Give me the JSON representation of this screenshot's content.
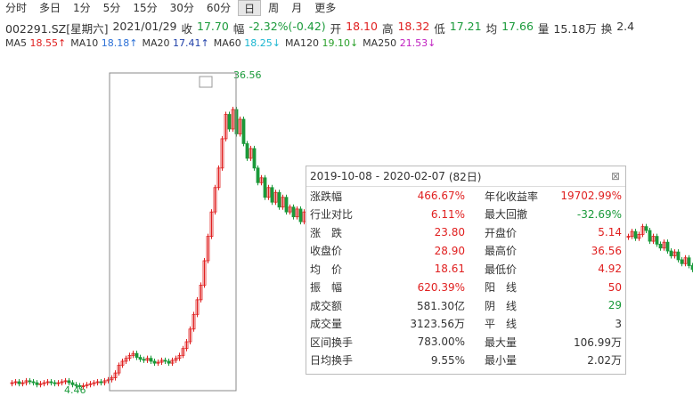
{
  "tabs": [
    "分时",
    "多日",
    "1分",
    "5分",
    "15分",
    "30分",
    "60分",
    "日",
    "周",
    "月",
    "更多"
  ],
  "active_tab": "日",
  "quote": {
    "code": "002291.SZ[星期六]",
    "date": "2021/01/29",
    "items": [
      {
        "label": "收",
        "value": "17.70",
        "color": "#1a9a3a"
      },
      {
        "label": "幅",
        "value": "-2.32%(-0.42)",
        "color": "#1a9a3a"
      },
      {
        "label": "开",
        "value": "18.10",
        "color": "#e02020"
      },
      {
        "label": "高",
        "value": "18.32",
        "color": "#e02020"
      },
      {
        "label": "低",
        "value": "17.21",
        "color": "#1a9a3a"
      },
      {
        "label": "均",
        "value": "17.66",
        "color": "#1a9a3a"
      },
      {
        "label": "量",
        "value": "15.18万",
        "color": "#333333"
      },
      {
        "label": "换",
        "value": "2.4",
        "color": "#333333"
      }
    ]
  },
  "ma": [
    {
      "name": "MA5",
      "value": "18.55↑",
      "color": "#e02020"
    },
    {
      "name": "MA10",
      "value": "18.18↑",
      "color": "#2a6fd6"
    },
    {
      "name": "MA20",
      "value": "17.41↑",
      "color": "#1f3fa8"
    },
    {
      "name": "MA60",
      "value": "18.25↓",
      "color": "#19b5d0"
    },
    {
      "name": "MA120",
      "value": "19.10↓",
      "color": "#2aa02a"
    },
    {
      "name": "MA250",
      "value": "21.53↓",
      "color": "#c020c0"
    }
  ],
  "chart_data": {
    "type": "candlestick",
    "up_color": "#e02020",
    "down_color": "#1a9a3a",
    "high_label": 36.56,
    "low_label": 4.46,
    "closes": [
      5.0,
      5.1,
      4.9,
      5.0,
      5.2,
      5.1,
      5.0,
      4.8,
      4.9,
      5.0,
      5.1,
      5.0,
      4.9,
      5.0,
      5.1,
      5.2,
      5.0,
      4.8,
      4.7,
      4.6,
      4.7,
      4.8,
      4.9,
      5.0,
      5.1,
      5.0,
      5.2,
      5.3,
      5.5,
      6.0,
      6.8,
      7.2,
      7.5,
      7.8,
      8.0,
      7.6,
      7.4,
      7.3,
      7.5,
      7.2,
      7.0,
      7.1,
      7.3,
      7.2,
      7.0,
      7.3,
      7.5,
      7.8,
      8.5,
      9.2,
      10.5,
      12.0,
      13.5,
      15.0,
      17.5,
      20.0,
      22.5,
      25.0,
      27.0,
      30.0,
      32.5,
      31.0,
      33.0,
      30.5,
      32.0,
      29.5,
      28.0,
      29.0,
      27.0,
      25.5,
      26.0,
      24.0,
      25.0,
      23.5,
      24.5,
      23.0,
      24.0,
      22.5,
      23.0,
      22.0,
      22.8,
      21.5,
      22.5,
      23.0
    ],
    "closes_right": [
      20.0,
      20.5,
      19.8,
      20.2,
      21.0,
      20.6,
      19.5,
      20.0,
      19.2,
      18.8,
      19.4,
      18.5,
      18.0,
      18.4,
      17.6,
      17.2,
      17.8,
      17.0,
      16.6,
      16.9
    ]
  },
  "popup": {
    "start": "2019-10-08",
    "sep": "-",
    "end": "2020-02-07",
    "days": "(82日)",
    "rows": [
      {
        "l": "涨跌幅",
        "lv": "466.67%",
        "lc": "#e02020",
        "r": "年化收益率",
        "rv": "19702.99%",
        "rc": "#e02020"
      },
      {
        "l": "行业对比",
        "lv": "6.11%",
        "lc": "#e02020",
        "r": "最大回撤",
        "rv": "-32.69%",
        "rc": "#1a9a3a"
      },
      {
        "l": "涨　跌",
        "lv": "23.80",
        "lc": "#e02020",
        "r": "开盘价",
        "rv": "5.14",
        "rc": "#e02020"
      },
      {
        "l": "收盘价",
        "lv": "28.90",
        "lc": "#e02020",
        "r": "最高价",
        "rv": "36.56",
        "rc": "#e02020"
      },
      {
        "l": "均　价",
        "lv": "18.61",
        "lc": "#e02020",
        "r": "最低价",
        "rv": "4.92",
        "rc": "#e02020"
      },
      {
        "l": "振　幅",
        "lv": "620.39%",
        "lc": "#e02020",
        "r": "阳　线",
        "rv": "50",
        "rc": "#e02020"
      },
      {
        "l": "成交额",
        "lv": "581.30亿",
        "lc": "#333333",
        "r": "阴　线",
        "rv": "29",
        "rc": "#1a9a3a"
      },
      {
        "l": "成交量",
        "lv": "3123.56万",
        "lc": "#333333",
        "r": "平　线",
        "rv": "3",
        "rc": "#333333"
      },
      {
        "l": "区间换手",
        "lv": "783.00%",
        "lc": "#333333",
        "r": "最大量",
        "rv": "106.99万",
        "rc": "#333333"
      },
      {
        "l": "日均换手",
        "lv": "9.55%",
        "lc": "#333333",
        "r": "最小量",
        "rv": "2.02万",
        "rc": "#333333"
      }
    ]
  }
}
